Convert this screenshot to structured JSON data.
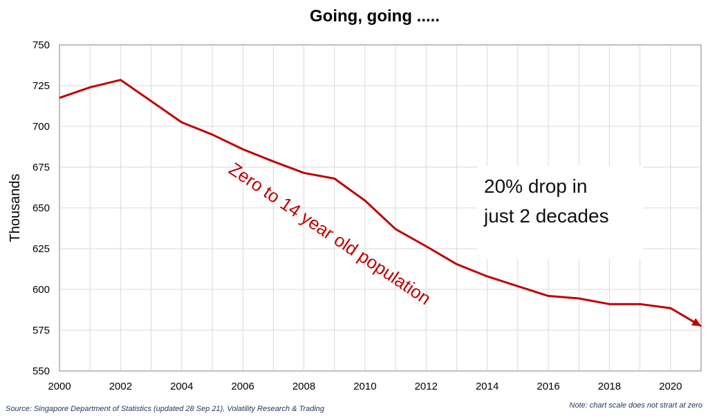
{
  "chart_data": {
    "type": "line",
    "title": "Going, going .....",
    "ylabel": "Thousands",
    "xlabel": "",
    "ylim": [
      550,
      750
    ],
    "yticks": [
      550,
      575,
      600,
      625,
      650,
      675,
      700,
      725,
      750
    ],
    "xlim": [
      2000,
      2021
    ],
    "xticks": [
      2000,
      2002,
      2004,
      2006,
      2008,
      2010,
      2012,
      2014,
      2016,
      2018,
      2020
    ],
    "grid": true,
    "series": [
      {
        "name": "Zero to 14 year old population",
        "color": "#c00000",
        "x": [
          2000,
          2001,
          2002,
          2003,
          2004,
          2005,
          2006,
          2007,
          2008,
          2009,
          2010,
          2011,
          2012,
          2013,
          2014,
          2015,
          2016,
          2017,
          2018,
          2019,
          2020,
          2021
        ],
        "y": [
          717.5,
          724,
          728.5,
          715.5,
          702.5,
          695,
          686,
          678.5,
          671.5,
          668,
          654.5,
          637,
          626.5,
          615.5,
          608,
          602,
          596,
          594.5,
          591,
          591,
          588.5,
          577.5
        ]
      }
    ],
    "annotation": {
      "line1": "20% drop in",
      "line2": "just 2 decades"
    },
    "source": "Source: Singapore Department of Statistics (updated 28 Sep 21), Volatility Research & Trading",
    "note": "Note: chart scale does not strart at zero"
  }
}
